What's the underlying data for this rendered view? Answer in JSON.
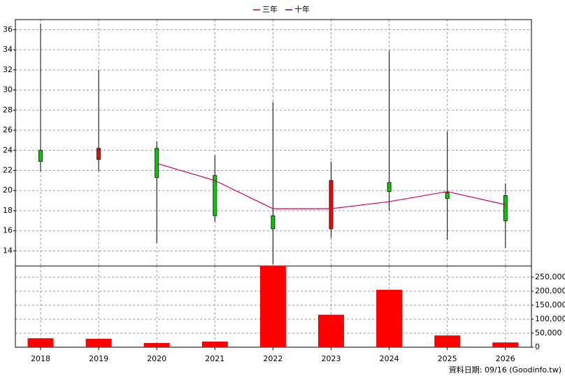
{
  "chart_data": [
    {
      "type": "candlestick",
      "categories": [
        "2018",
        "2019",
        "2020",
        "2021",
        "2022",
        "2023",
        "2024",
        "2025",
        "2026"
      ],
      "open": [
        24.0,
        23.1,
        24.2,
        21.5,
        17.5,
        16.2,
        20.8,
        19.8,
        19.5
      ],
      "high": [
        36.6,
        32.0,
        24.9,
        23.5,
        28.8,
        22.9,
        33.9,
        25.9,
        20.7
      ],
      "low": [
        21.9,
        21.9,
        14.8,
        16.9,
        12.7,
        15.3,
        18.0,
        15.1,
        14.3
      ],
      "close": [
        22.9,
        24.2,
        21.3,
        17.5,
        16.2,
        21.0,
        19.9,
        19.2,
        17.0
      ],
      "up_color": "#ff0000",
      "down_color": "#00cc00",
      "series": [
        {
          "name": "三年",
          "color": "#cc0066",
          "values": [
            null,
            null,
            22.7,
            21.0,
            18.2,
            18.2,
            18.9,
            19.9,
            18.6
          ]
        },
        {
          "name": "十年",
          "color": "#6600cc",
          "values": [
            null,
            null,
            null,
            null,
            null,
            null,
            null,
            null,
            null
          ]
        }
      ],
      "ylim": [
        12.5,
        37.0
      ],
      "yticks": [
        14,
        16,
        18,
        20,
        22,
        24,
        26,
        28,
        30,
        32,
        34,
        36
      ],
      "grid": true
    },
    {
      "type": "bar",
      "categories": [
        "2018",
        "2019",
        "2020",
        "2021",
        "2022",
        "2023",
        "2024",
        "2025",
        "2026"
      ],
      "values": [
        32000,
        30000,
        15000,
        20000,
        290000,
        116000,
        205000,
        42000,
        17000
      ],
      "color": "#ff0000",
      "ylim": [
        0,
        290000
      ],
      "yticks": [
        0,
        {
          "value": 50000,
          "label": "50,000"
        },
        {
          "value": 100000,
          "label": "100,000"
        },
        {
          "value": 150000,
          "label": "150,000"
        },
        {
          "value": 200000,
          "label": "200,000"
        },
        {
          "value": 250000,
          "label": "250,000"
        }
      ],
      "grid": true,
      "footnote": "資料日期: 09/16  (Goodinfo.tw)"
    }
  ]
}
